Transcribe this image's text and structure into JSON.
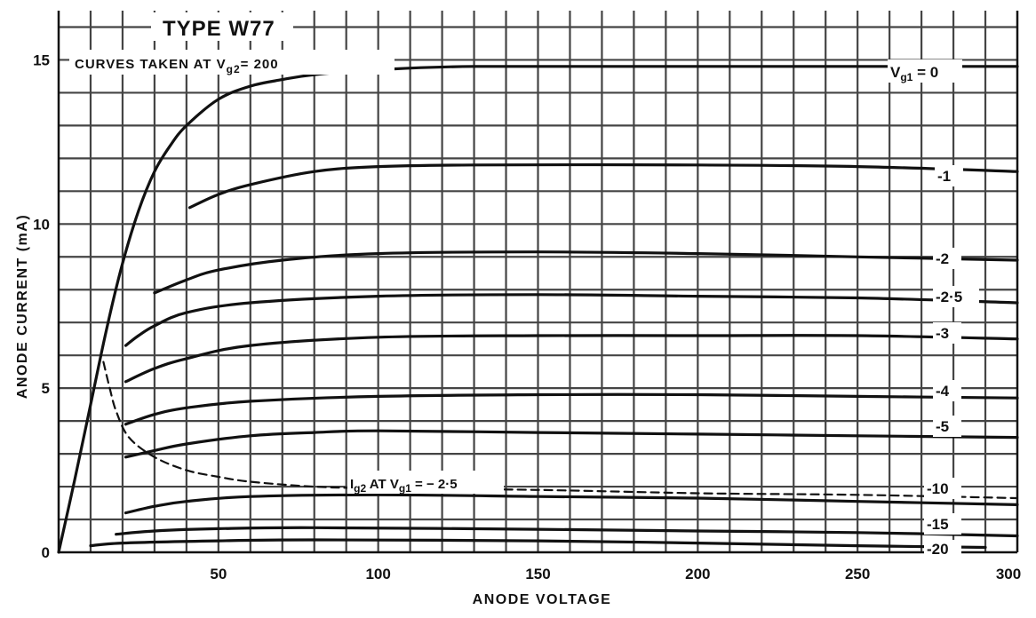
{
  "chart_data": {
    "type": "line",
    "title": "TYPE W77",
    "subtitle_prefix": "CURVES TAKEN AT V",
    "subtitle_sub": "g2",
    "subtitle_suffix": "= 200",
    "xlabel": "ANODE VOLTAGE",
    "ylabel": "ANODE CURRENT (mA)",
    "xlim": [
      0,
      300
    ],
    "ylim": [
      0,
      16.5
    ],
    "x_ticks": [
      0,
      50,
      100,
      150,
      200,
      250,
      300
    ],
    "x_tick_labels": [
      "",
      "50",
      "100",
      "150",
      "200",
      "250",
      "300"
    ],
    "y_ticks": [
      0,
      5,
      10,
      15
    ],
    "y_tick_labels": [
      "0",
      "5",
      "10",
      "15"
    ],
    "grid": true,
    "grid_minor_x_step": 10,
    "grid_minor_y_step": 1,
    "legend": "none",
    "series": [
      {
        "name": "V",
        "name_sub": "g1",
        "name_suffix": " = 0",
        "points": [
          [
            0,
            0
          ],
          [
            5,
            2.2
          ],
          [
            10,
            4.5
          ],
          [
            15,
            6.8
          ],
          [
            20,
            8.8
          ],
          [
            25,
            10.4
          ],
          [
            30,
            11.6
          ],
          [
            35,
            12.4
          ],
          [
            40,
            13.0
          ],
          [
            50,
            13.8
          ],
          [
            60,
            14.2
          ],
          [
            70,
            14.4
          ],
          [
            80,
            14.55
          ],
          [
            100,
            14.7
          ],
          [
            130,
            14.8
          ],
          [
            200,
            14.8
          ],
          [
            300,
            14.8
          ]
        ],
        "style": "solid"
      },
      {
        "name": "-1",
        "points": [
          [
            41,
            10.5
          ],
          [
            50,
            10.9
          ],
          [
            60,
            11.2
          ],
          [
            80,
            11.6
          ],
          [
            100,
            11.75
          ],
          [
            130,
            11.8
          ],
          [
            200,
            11.8
          ],
          [
            250,
            11.75
          ],
          [
            300,
            11.6
          ]
        ],
        "style": "solid"
      },
      {
        "name": "-2",
        "points": [
          [
            30,
            7.9
          ],
          [
            40,
            8.3
          ],
          [
            50,
            8.6
          ],
          [
            70,
            8.9
          ],
          [
            100,
            9.1
          ],
          [
            150,
            9.15
          ],
          [
            200,
            9.1
          ],
          [
            250,
            9.0
          ],
          [
            300,
            8.9
          ]
        ],
        "style": "solid"
      },
      {
        "name": "-2·5",
        "points": [
          [
            21,
            6.3
          ],
          [
            25,
            6.6
          ],
          [
            30,
            6.9
          ],
          [
            40,
            7.3
          ],
          [
            60,
            7.6
          ],
          [
            100,
            7.8
          ],
          [
            150,
            7.85
          ],
          [
            200,
            7.8
          ],
          [
            250,
            7.75
          ],
          [
            300,
            7.6
          ]
        ],
        "style": "solid"
      },
      {
        "name": "-3",
        "points": [
          [
            21,
            5.2
          ],
          [
            30,
            5.6
          ],
          [
            40,
            5.9
          ],
          [
            60,
            6.3
          ],
          [
            100,
            6.55
          ],
          [
            150,
            6.6
          ],
          [
            200,
            6.6
          ],
          [
            250,
            6.6
          ],
          [
            300,
            6.5
          ]
        ],
        "style": "solid"
      },
      {
        "name": "-4",
        "points": [
          [
            21,
            3.9
          ],
          [
            30,
            4.2
          ],
          [
            40,
            4.4
          ],
          [
            60,
            4.6
          ],
          [
            100,
            4.75
          ],
          [
            150,
            4.8
          ],
          [
            200,
            4.8
          ],
          [
            250,
            4.75
          ],
          [
            300,
            4.7
          ]
        ],
        "style": "solid"
      },
      {
        "name": "-5",
        "points": [
          [
            21,
            2.9
          ],
          [
            30,
            3.1
          ],
          [
            40,
            3.3
          ],
          [
            60,
            3.55
          ],
          [
            80,
            3.65
          ],
          [
            100,
            3.7
          ],
          [
            150,
            3.65
          ],
          [
            200,
            3.6
          ],
          [
            250,
            3.55
          ],
          [
            300,
            3.5
          ]
        ],
        "style": "solid"
      },
      {
        "name": "-10",
        "points": [
          [
            21,
            1.2
          ],
          [
            30,
            1.4
          ],
          [
            40,
            1.55
          ],
          [
            60,
            1.7
          ],
          [
            100,
            1.75
          ],
          [
            150,
            1.7
          ],
          [
            200,
            1.65
          ],
          [
            250,
            1.55
          ],
          [
            300,
            1.45
          ]
        ],
        "style": "solid"
      },
      {
        "name": "-15",
        "points": [
          [
            18,
            0.55
          ],
          [
            30,
            0.65
          ],
          [
            50,
            0.72
          ],
          [
            80,
            0.75
          ],
          [
            150,
            0.7
          ],
          [
            200,
            0.65
          ],
          [
            250,
            0.6
          ],
          [
            300,
            0.5
          ]
        ],
        "style": "solid"
      },
      {
        "name": "-20",
        "points": [
          [
            10,
            0.2
          ],
          [
            20,
            0.28
          ],
          [
            50,
            0.35
          ],
          [
            80,
            0.38
          ],
          [
            150,
            0.35
          ],
          [
            200,
            0.28
          ],
          [
            250,
            0.2
          ],
          [
            290,
            0.15
          ]
        ],
        "style": "solid"
      },
      {
        "name": "I",
        "name_sub": "g2",
        "name_suffix": " AT V",
        "name_sub2": "g1",
        "name_suffix2": " = − 2·5",
        "points": [
          [
            14,
            5.8
          ],
          [
            16,
            5.0
          ],
          [
            18,
            4.3
          ],
          [
            22,
            3.5
          ],
          [
            30,
            2.9
          ],
          [
            40,
            2.5
          ],
          [
            50,
            2.3
          ],
          [
            60,
            2.15
          ],
          [
            80,
            2.0
          ],
          [
            100,
            1.95
          ],
          [
            150,
            1.9
          ],
          [
            200,
            1.8
          ],
          [
            250,
            1.75
          ],
          [
            300,
            1.65
          ]
        ],
        "style": "dashed"
      }
    ]
  }
}
